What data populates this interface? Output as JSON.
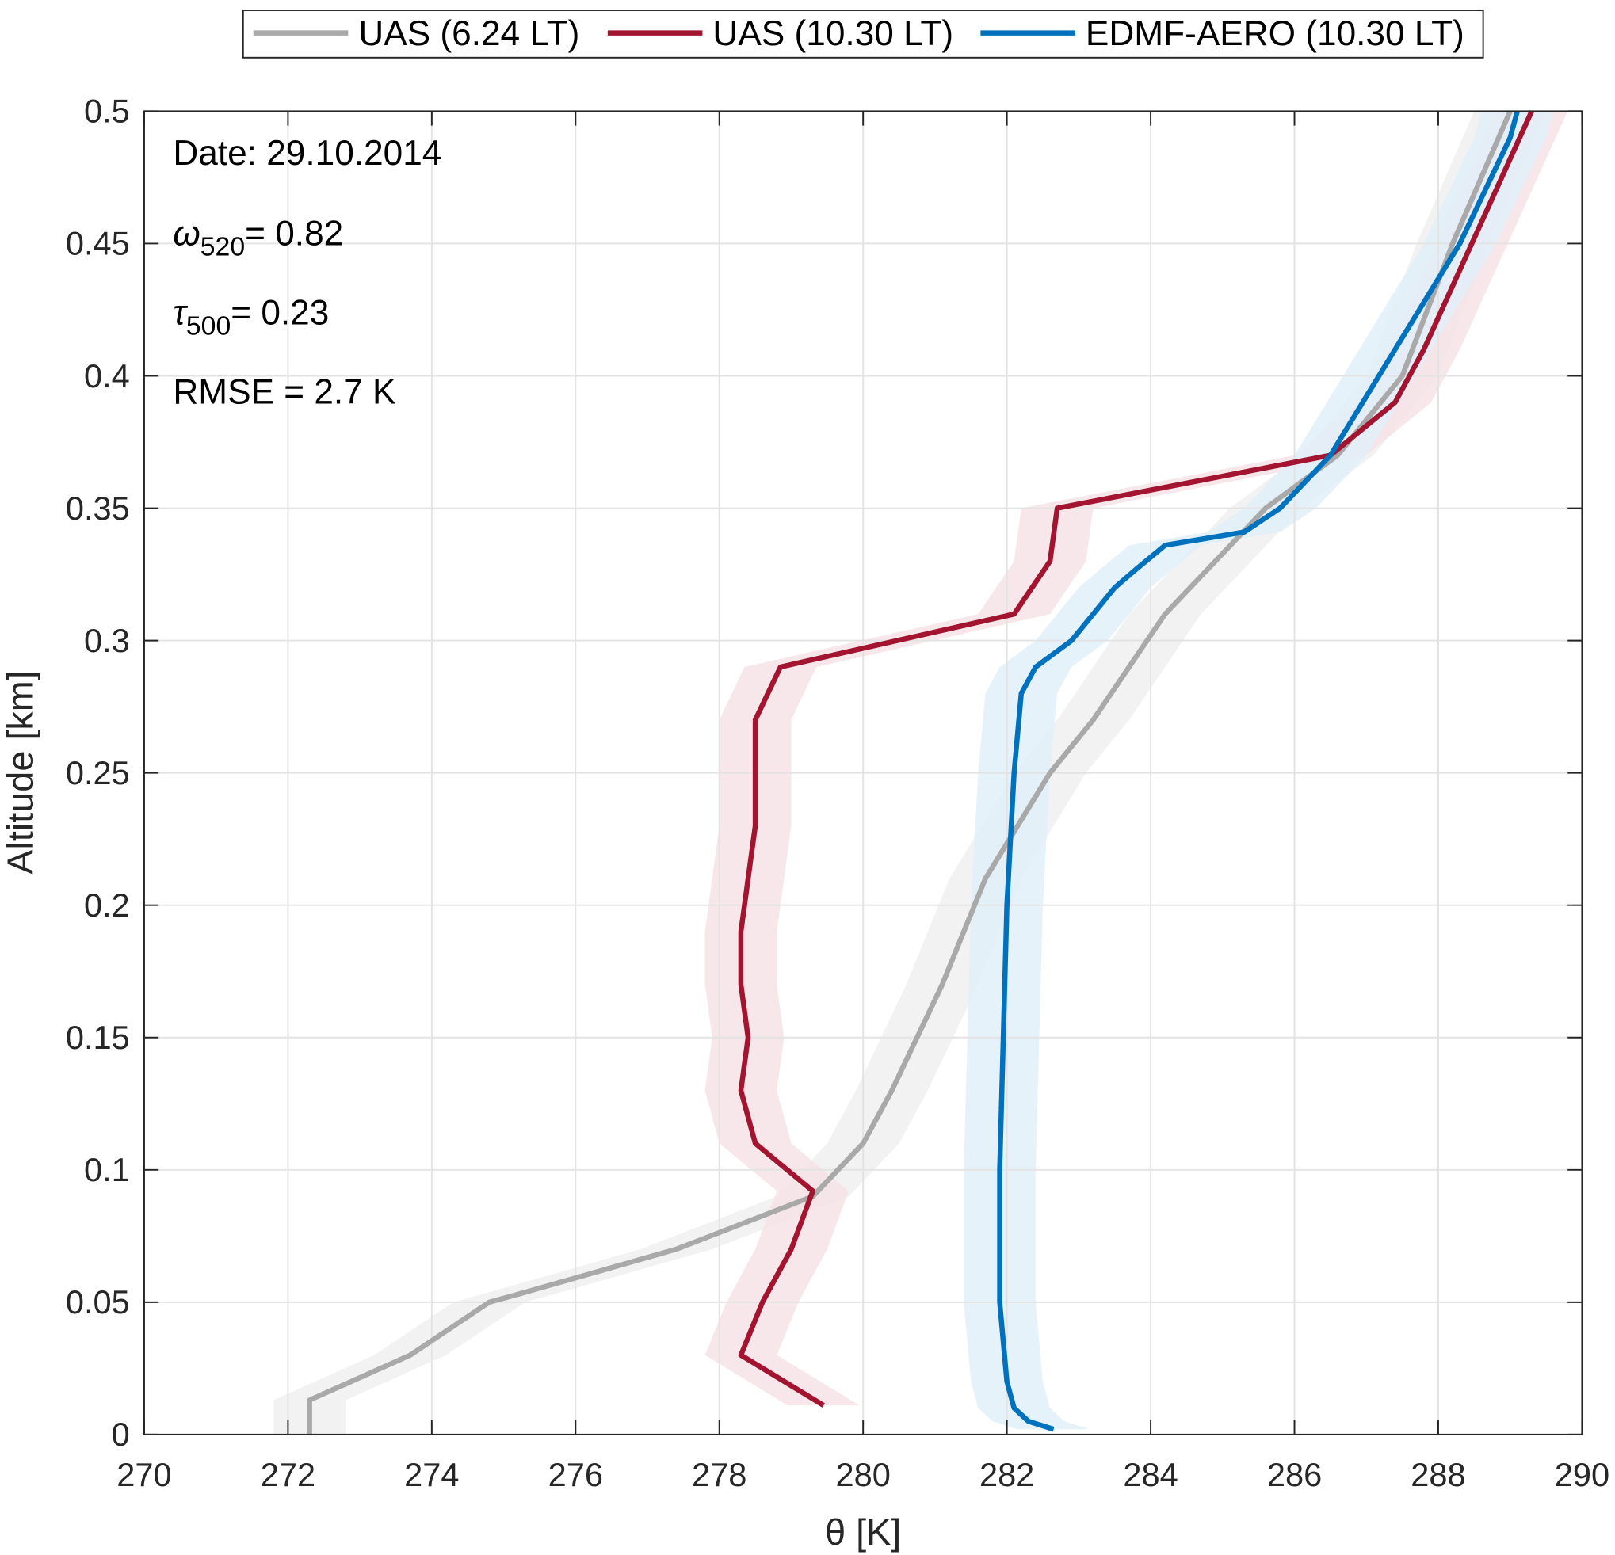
{
  "chart_data": {
    "type": "line",
    "xlabel": "θ [K]",
    "ylabel": "Altitude [km]",
    "xlim": [
      270,
      290
    ],
    "ylim": [
      0,
      0.5
    ],
    "xticks": [
      "270",
      "272",
      "274",
      "276",
      "278",
      "280",
      "282",
      "284",
      "286",
      "288",
      "290"
    ],
    "yticks": [
      "0",
      "0.05",
      "0.1",
      "0.15",
      "0.2",
      "0.25",
      "0.3",
      "0.35",
      "0.4",
      "0.45",
      "0.5"
    ],
    "grid": true,
    "legend_placement": "top, outside",
    "annotations": {
      "date": "Date: 29.10.2014",
      "omega_sym": "ω",
      "omega_sub": "520",
      "omega_val": "= 0.82",
      "tau_sym": "τ",
      "tau_sub": "500",
      "tau_val": "= 0.23",
      "rmse": "RMSE = 2.7 K"
    },
    "series": [
      {
        "name": "UAS (6.24 LT)",
        "color": "#a9a9a9",
        "band_color": "#f0f0f0",
        "uncertainty": 0.5,
        "points": [
          [
            272.3,
            0.0
          ],
          [
            272.3,
            0.013
          ],
          [
            273.7,
            0.03
          ],
          [
            274.8,
            0.05
          ],
          [
            275.2,
            0.053
          ],
          [
            277.4,
            0.07
          ],
          [
            279.3,
            0.09
          ],
          [
            280.0,
            0.11
          ],
          [
            280.4,
            0.13
          ],
          [
            281.1,
            0.17
          ],
          [
            281.7,
            0.21
          ],
          [
            282.6,
            0.25
          ],
          [
            283.2,
            0.27
          ],
          [
            283.7,
            0.29
          ],
          [
            284.2,
            0.31
          ],
          [
            284.9,
            0.33
          ],
          [
            285.6,
            0.35
          ],
          [
            286.6,
            0.37
          ],
          [
            287.5,
            0.4
          ],
          [
            288.2,
            0.45
          ],
          [
            289.0,
            0.5
          ]
        ]
      },
      {
        "name": "UAS (10.30 LT)",
        "color": "#a2142f",
        "band_color": "#f6e3e6",
        "uncertainty": 0.5,
        "points": [
          [
            279.45,
            0.011
          ],
          [
            278.3,
            0.03
          ],
          [
            278.6,
            0.05
          ],
          [
            279.0,
            0.07
          ],
          [
            279.3,
            0.092
          ],
          [
            278.5,
            0.11
          ],
          [
            278.3,
            0.13
          ],
          [
            278.4,
            0.15
          ],
          [
            278.3,
            0.17
          ],
          [
            278.3,
            0.19
          ],
          [
            278.4,
            0.21
          ],
          [
            278.5,
            0.23
          ],
          [
            278.5,
            0.25
          ],
          [
            278.5,
            0.27
          ],
          [
            278.85,
            0.29
          ],
          [
            282.1,
            0.31
          ],
          [
            282.6,
            0.33
          ],
          [
            282.7,
            0.35
          ],
          [
            286.5,
            0.37
          ],
          [
            287.4,
            0.39
          ],
          [
            287.8,
            0.41
          ],
          [
            289.3,
            0.5
          ]
        ]
      },
      {
        "name": "EDMF-AERO (10.30 LT)",
        "color": "#0072bd",
        "band_color": "#e2f0f9",
        "uncertainty": 0.5,
        "points": [
          [
            282.65,
            0.002
          ],
          [
            282.3,
            0.005
          ],
          [
            282.1,
            0.01
          ],
          [
            282.0,
            0.02
          ],
          [
            281.9,
            0.05
          ],
          [
            281.9,
            0.1
          ],
          [
            281.95,
            0.15
          ],
          [
            282.0,
            0.2
          ],
          [
            282.1,
            0.25
          ],
          [
            282.2,
            0.28
          ],
          [
            282.4,
            0.29
          ],
          [
            282.9,
            0.3
          ],
          [
            283.5,
            0.32
          ],
          [
            283.8,
            0.327
          ],
          [
            284.2,
            0.336
          ],
          [
            285.3,
            0.341
          ],
          [
            285.8,
            0.35
          ],
          [
            286.5,
            0.37
          ],
          [
            287.4,
            0.41
          ],
          [
            288.3,
            0.45
          ],
          [
            289.0,
            0.49
          ],
          [
            289.1,
            0.5
          ]
        ]
      }
    ]
  }
}
